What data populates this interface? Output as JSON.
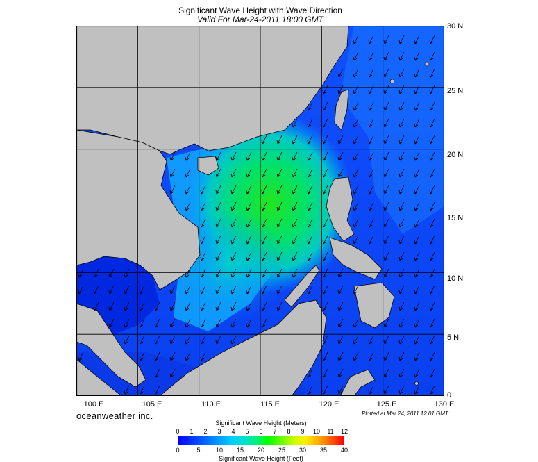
{
  "title": "Significant Wave Height with Wave Direction",
  "subtitle": "Valid For Mar-24-2011 18:00 GMT",
  "map": {
    "lon_labels": [
      "100 E",
      "105 E",
      "110 E",
      "115 E",
      "120 E",
      "125 E",
      "130 E"
    ],
    "lat_labels": [
      "30 N",
      "25 N",
      "20 N",
      "15 N",
      "10 N",
      "5 N",
      "0"
    ],
    "extent": {
      "lon": [
        100,
        130
      ],
      "lat": [
        0,
        30
      ]
    },
    "land_color": "#c0c0c0",
    "wave_direction": "toward southwest (NE monsoon)"
  },
  "brand": "oceanweather inc.",
  "plotted": "Plotted at Mar 24, 2011 12:01 GMT",
  "scale": {
    "meters_title": "Significant Wave Height (Meters)",
    "feet_title": "Significant Wave Height (Feet)",
    "meters_ticks": [
      "0",
      "1",
      "2",
      "3",
      "4",
      "5",
      "6",
      "7",
      "8",
      "9",
      "10",
      "11",
      "12"
    ],
    "feet_ticks": [
      "0",
      "5",
      "10",
      "15",
      "20",
      "25",
      "30",
      "35",
      "40"
    ]
  },
  "colors": {
    "low": "#0000ff",
    "mid": "#00ff00",
    "high": "#ff0000",
    "land": "#c0c0c0"
  }
}
